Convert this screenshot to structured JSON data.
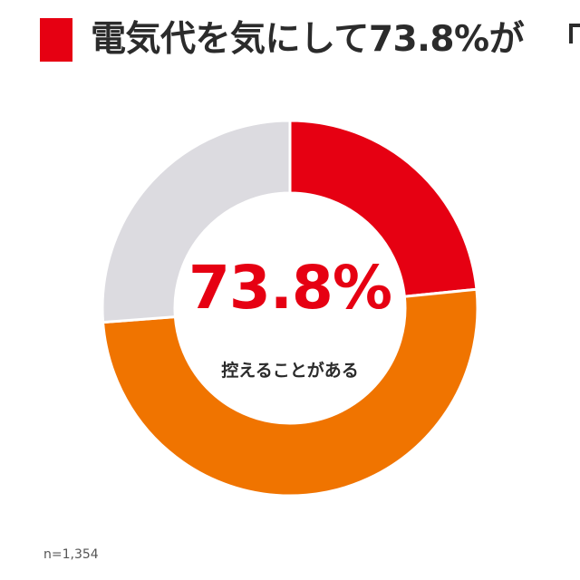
{
  "header": {
    "title": "電気代を気にして73.8%が"
  },
  "colors": {
    "accent": "#e60012",
    "orange": "#f07400",
    "gray": "#dcdbe0",
    "text": "#2b2b2b"
  },
  "chart_data": {
    "type": "pie",
    "donut": true,
    "center_value": "73.8%",
    "center_label": "控えることがある",
    "sample_size": "n=1,354",
    "slices": [
      {
        "value": 23.4,
        "color": "#e60012"
      },
      {
        "value": 50.4,
        "color": "#f07400"
      },
      {
        "value": 26.2,
        "color": "#dcdbe0"
      }
    ]
  }
}
